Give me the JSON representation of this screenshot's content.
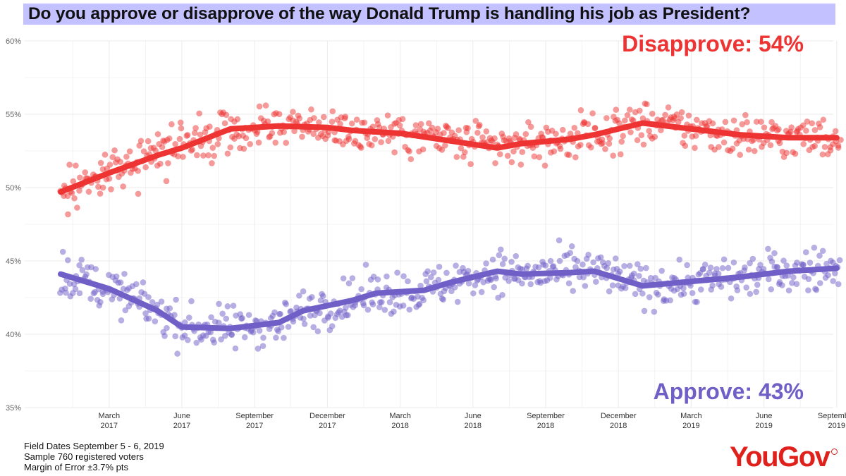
{
  "title": "Do you approve or disapprove of the way Donald Trump is handling his job as President?",
  "footer": {
    "field_dates": "Field Dates September 5 - 6, 2019",
    "sample": "Sample 760 registered voters",
    "margin": "Margin of Error ±3.7% pts"
  },
  "logo": "YouGov",
  "colors": {
    "disapprove": "#ee3333",
    "approve": "#6f5fc7",
    "title_bg": "#c3c1ff",
    "logo": "#e0201b"
  },
  "chart_data": {
    "type": "scatter",
    "ylim": [
      35,
      60
    ],
    "y_ticks": [
      "35%",
      "40%",
      "45%",
      "50%",
      "55%",
      "60%"
    ],
    "x_ticks": [
      {
        "month": "March",
        "year": "2017"
      },
      {
        "month": "June",
        "year": "2017"
      },
      {
        "month": "September",
        "year": "2017"
      },
      {
        "month": "December",
        "year": "2017"
      },
      {
        "month": "March",
        "year": "2018"
      },
      {
        "month": "June",
        "year": "2018"
      },
      {
        "month": "September",
        "year": "2018"
      },
      {
        "month": "December",
        "year": "2018"
      },
      {
        "month": "March",
        "year": "2019"
      },
      {
        "month": "June",
        "year": "2019"
      },
      {
        "month": "September",
        "year": "2019"
      }
    ],
    "x_range": [
      "2017-01",
      "2019-09"
    ],
    "series": [
      {
        "name": "Disapprove",
        "label": "Disapprove: 54%",
        "trend": [
          [
            "2017-01",
            49.7
          ],
          [
            "2017-03",
            51.0
          ],
          [
            "2017-05",
            52.2
          ],
          [
            "2017-06",
            52.7
          ],
          [
            "2017-08",
            54.0
          ],
          [
            "2017-09",
            54.1
          ],
          [
            "2017-10",
            54.2
          ],
          [
            "2017-12",
            54.1
          ],
          [
            "2018-01",
            53.9
          ],
          [
            "2018-03",
            53.7
          ],
          [
            "2018-05",
            53.2
          ],
          [
            "2018-07",
            52.7
          ],
          [
            "2018-08",
            53.0
          ],
          [
            "2018-10",
            53.3
          ],
          [
            "2018-11",
            53.6
          ],
          [
            "2019-01",
            54.4
          ],
          [
            "2019-03",
            54.0
          ],
          [
            "2019-05",
            53.6
          ],
          [
            "2019-07",
            53.4
          ],
          [
            "2019-09",
            53.4
          ]
        ]
      },
      {
        "name": "Approve",
        "label": "Approve: 43%",
        "trend": [
          [
            "2017-01",
            44.1
          ],
          [
            "2017-03",
            43.1
          ],
          [
            "2017-05",
            41.6
          ],
          [
            "2017-06",
            40.5
          ],
          [
            "2017-08",
            40.4
          ],
          [
            "2017-10",
            40.8
          ],
          [
            "2017-11",
            41.6
          ],
          [
            "2018-01",
            42.3
          ],
          [
            "2018-02",
            42.8
          ],
          [
            "2018-04",
            43.0
          ],
          [
            "2018-05",
            43.5
          ],
          [
            "2018-07",
            44.3
          ],
          [
            "2018-08",
            44.1
          ],
          [
            "2018-10",
            44.2
          ],
          [
            "2018-11",
            44.3
          ],
          [
            "2019-01",
            43.3
          ],
          [
            "2019-03",
            43.6
          ],
          [
            "2019-05",
            43.9
          ],
          [
            "2019-07",
            44.3
          ],
          [
            "2019-09",
            44.5
          ]
        ]
      }
    ]
  }
}
